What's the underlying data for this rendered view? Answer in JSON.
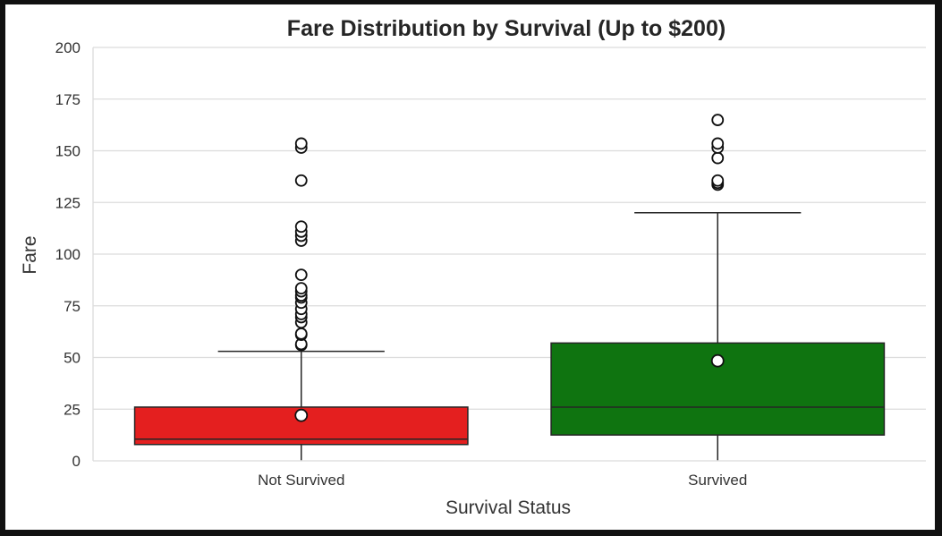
{
  "chart_data": {
    "type": "box",
    "title": "Fare Distribution by Survival (Up to $200)",
    "xlabel": "Survival Status",
    "ylabel": "Fare",
    "ylim": [
      0,
      200
    ],
    "yticks": [
      0,
      25,
      50,
      75,
      100,
      125,
      150,
      175,
      200
    ],
    "grid": true,
    "categories": [
      "Not Survived",
      "Survived"
    ],
    "boxes": [
      {
        "category": "Not Survived",
        "color": "#e41f1f",
        "whisker_low": 0,
        "q1": 7.9,
        "median": 10.5,
        "q3": 26,
        "whisker_high": 53,
        "mean": 22,
        "outliers": [
          56,
          56.5,
          61,
          61.5,
          67,
          69.5,
          71,
          73.5,
          76.5,
          79,
          80,
          82,
          83.5,
          90,
          106.5,
          108.9,
          110.9,
          113.3,
          135.6,
          151.5,
          153.5
        ]
      },
      {
        "category": "Survived",
        "color": "#0f7410",
        "whisker_low": 0,
        "q1": 12.5,
        "median": 26,
        "q3": 57,
        "whisker_high": 120,
        "mean": 48.4,
        "outliers": [
          133.6,
          134.5,
          135.6,
          146.5,
          151.5,
          153.5,
          164.9
        ]
      }
    ]
  }
}
